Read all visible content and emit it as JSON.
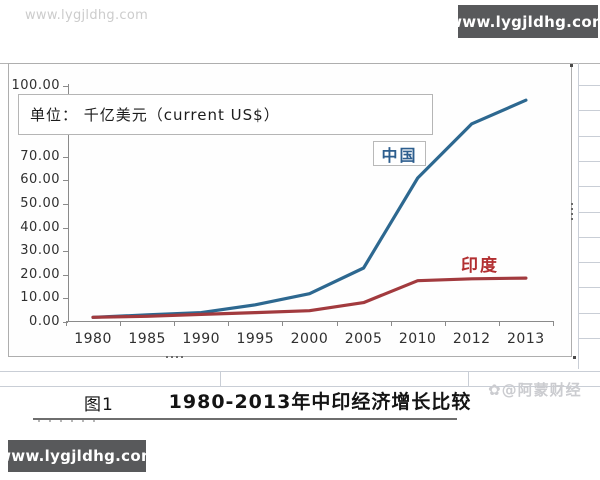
{
  "watermarks": {
    "top_left": "www.lygjldhg.com",
    "top_right": "www.lygjldhg.com",
    "bottom_left": "www.lygjldhg.com",
    "bottom_right": "✿@阿蒙财经"
  },
  "chart_data": {
    "type": "line",
    "title": "1980-2013年中印经济增长比较",
    "figure_label": "图1",
    "unit_label": "单位： 千亿美元（current US$）",
    "categories": [
      "1980",
      "1985",
      "1990",
      "1995",
      "2000",
      "2005",
      "2010",
      "2012",
      "2013"
    ],
    "series": [
      {
        "key": "china",
        "name": "中国",
        "color": "#2d6890",
        "label_color": "#2d5e8e",
        "values": [
          2.0,
          3.0,
          4.0,
          7.3,
          12.0,
          22.9,
          61.0,
          84.0,
          94.0
        ]
      },
      {
        "key": "india",
        "name": "印度",
        "color": "#a23a3e",
        "label_color": "#b22f31",
        "values": [
          2.0,
          2.4,
          3.2,
          4.0,
          4.8,
          8.2,
          17.5,
          18.3,
          18.6
        ]
      }
    ],
    "y_ticks": [
      {
        "label": "100.00",
        "value": 100
      },
      {
        "label": "70.00",
        "value": 70
      },
      {
        "label": "60.00",
        "value": 60
      },
      {
        "label": "50.00",
        "value": 50
      },
      {
        "label": "40.00",
        "value": 40
      },
      {
        "label": "30.00",
        "value": 30
      },
      {
        "label": "20.00",
        "value": 20
      },
      {
        "label": "10.00",
        "value": 10
      },
      {
        "label": "0.00",
        "value": 0
      }
    ],
    "ylim": [
      0,
      100
    ],
    "grid": "off",
    "legend": "inline-labels"
  }
}
